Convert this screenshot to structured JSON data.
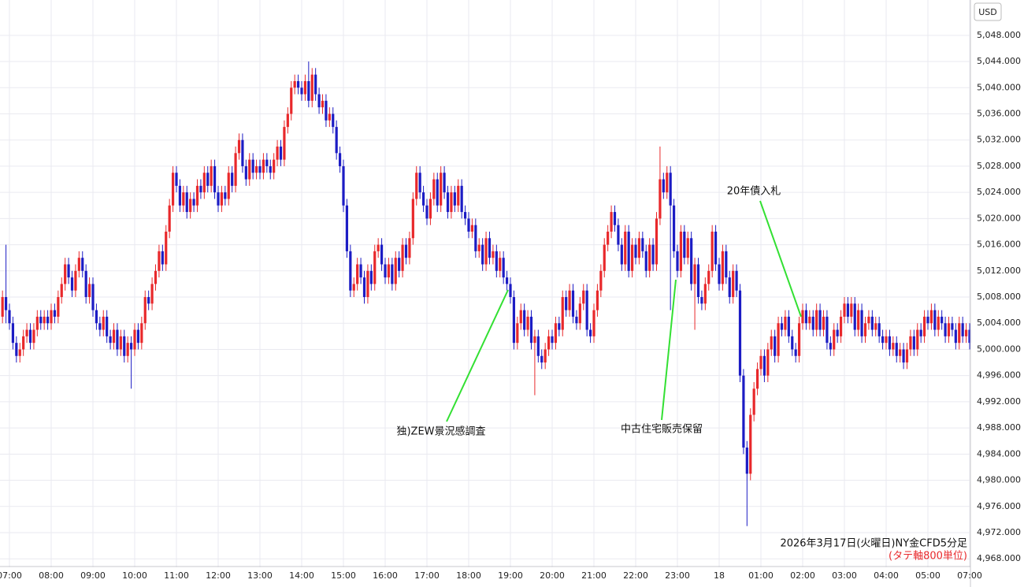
{
  "chart_data": {
    "type": "candlestick",
    "title": "2026年3月17日(火曜日)NY金CFD5分足",
    "subtitle": "(タテ軸800単位)",
    "y_axis_label": "USD",
    "up_color": "#e8282b",
    "down_color": "#1c1cc4",
    "annotation_color": "#33e033",
    "grid": true,
    "annotations": [
      {
        "text": "独)ZEW景況感調査"
      },
      {
        "text": "中古住宅販売保留"
      },
      {
        "text": "20年債入札"
      }
    ],
    "ylim": [
      4966.7,
      5053.4
    ],
    "yticks": [
      {
        "value": 4968,
        "label": "4,968.000"
      },
      {
        "value": 4972,
        "label": "4,972.000"
      },
      {
        "value": 4976,
        "label": "4,976.000"
      },
      {
        "value": 4980,
        "label": "4,980.000"
      },
      {
        "value": 4984,
        "label": "4,984.000"
      },
      {
        "value": 4988,
        "label": "4,988.000"
      },
      {
        "value": 4992,
        "label": "4,992.000"
      },
      {
        "value": 4996,
        "label": "4,996.000"
      },
      {
        "value": 5000,
        "label": "5,000.000"
      },
      {
        "value": 5004,
        "label": "5,004.000"
      },
      {
        "value": 5008,
        "label": "5,008.000"
      },
      {
        "value": 5012,
        "label": "5,012.000"
      },
      {
        "value": 5016,
        "label": "5,016.000"
      },
      {
        "value": 5020,
        "label": "5,020.000"
      },
      {
        "value": 5024,
        "label": "5,024.000"
      },
      {
        "value": 5028,
        "label": "5,028.000"
      },
      {
        "value": 5032,
        "label": "5,032.000"
      },
      {
        "value": 5036,
        "label": "5,036.000"
      },
      {
        "value": 5040,
        "label": "5,040.000"
      },
      {
        "value": 5044,
        "label": "5,044.000"
      },
      {
        "value": 5048,
        "label": "5,048.000"
      }
    ],
    "categories": [
      null,
      null,
      "07:00",
      null,
      null,
      null,
      null,
      null,
      null,
      null,
      null,
      null,
      null,
      null,
      "08:00",
      null,
      null,
      null,
      null,
      null,
      null,
      null,
      null,
      null,
      null,
      null,
      "09:00",
      null,
      null,
      null,
      null,
      null,
      null,
      null,
      null,
      null,
      null,
      null,
      "10:00",
      null,
      null,
      null,
      null,
      null,
      null,
      null,
      null,
      null,
      null,
      null,
      "11:00",
      null,
      null,
      null,
      null,
      null,
      null,
      null,
      null,
      null,
      null,
      null,
      "12:00",
      null,
      null,
      null,
      null,
      null,
      null,
      null,
      null,
      null,
      null,
      null,
      "13:00",
      null,
      null,
      null,
      null,
      null,
      null,
      null,
      null,
      null,
      null,
      null,
      "14:00",
      null,
      null,
      null,
      null,
      null,
      null,
      null,
      null,
      null,
      null,
      null,
      "15:00",
      null,
      null,
      null,
      null,
      null,
      null,
      null,
      null,
      null,
      null,
      null,
      "16:00",
      null,
      null,
      null,
      null,
      null,
      null,
      null,
      null,
      null,
      null,
      null,
      "17:00",
      null,
      null,
      null,
      null,
      null,
      null,
      null,
      null,
      null,
      null,
      null,
      "18:00",
      null,
      null,
      null,
      null,
      null,
      null,
      null,
      null,
      null,
      null,
      null,
      "19:00",
      null,
      null,
      null,
      null,
      null,
      null,
      null,
      null,
      null,
      null,
      null,
      "20:00",
      null,
      null,
      null,
      null,
      null,
      null,
      null,
      null,
      null,
      null,
      null,
      "21:00",
      null,
      null,
      null,
      null,
      null,
      null,
      null,
      null,
      null,
      null,
      null,
      "22:00",
      null,
      null,
      null,
      null,
      null,
      null,
      null,
      null,
      null,
      null,
      null,
      "23:00",
      null,
      null,
      null,
      null,
      null,
      null,
      null,
      null,
      null,
      null,
      null,
      "18",
      null,
      null,
      null,
      null,
      null,
      null,
      null,
      null,
      null,
      null,
      null,
      "01:00",
      null,
      null,
      null,
      null,
      null,
      null,
      null,
      null,
      null,
      null,
      null,
      "02:00",
      null,
      null,
      null,
      null,
      null,
      null,
      null,
      null,
      null,
      null,
      null,
      "03:00",
      null,
      null,
      null,
      null,
      null,
      null,
      null,
      null,
      null,
      null,
      null,
      "04:00",
      null,
      null,
      null,
      null,
      null,
      null,
      null,
      null,
      null,
      null,
      null,
      "05:00",
      null,
      null,
      null,
      null,
      null,
      null,
      null,
      null,
      null,
      null,
      null,
      "07:00"
    ],
    "open": [
      5005,
      5008,
      5006,
      5004,
      5001,
      4999,
      5000,
      5002,
      5003,
      5001,
      5003,
      5005,
      5004,
      5005,
      5004,
      5006,
      5005,
      5008,
      5010,
      5013,
      5011,
      5009,
      5012,
      5014,
      5012,
      5008,
      5010,
      5006,
      5004,
      5003,
      5005,
      5002,
      5001,
      5003,
      5000,
      5002,
      4999,
      5001,
      5000,
      5003,
      5001,
      5004,
      5008,
      5007,
      5010,
      5012,
      5015,
      5013,
      5018,
      5022,
      5027,
      5025,
      5022,
      5024,
      5021,
      5023,
      5022,
      5025,
      5024,
      5027,
      5025,
      5028,
      5024,
      5022,
      5024,
      5023,
      5027,
      5025,
      5030,
      5032,
      5028,
      5026,
      5029,
      5027,
      5028,
      5027,
      5029,
      5028,
      5027,
      5029,
      5031,
      5029,
      5034,
      5036,
      5040,
      5041,
      5040,
      5039,
      5041,
      5038,
      5042,
      5039,
      5037,
      5038,
      5035,
      5036,
      5034,
      5030,
      5028,
      5022,
      5015,
      5009,
      5010,
      5013,
      5011,
      5008,
      5012,
      5010,
      5015,
      5016,
      5013,
      5011,
      5013,
      5010,
      5014,
      5012,
      5016,
      5014,
      5017,
      5023,
      5027,
      5024,
      5022,
      5020,
      5023,
      5026,
      5022,
      5027,
      5024,
      5021,
      5024,
      5022,
      5025,
      5021,
      5020,
      5018,
      5019,
      5015,
      5016,
      5013,
      5017,
      5014,
      5015,
      5012,
      5014,
      5011,
      5010,
      5008,
      5001,
      5004,
      5006,
      5003,
      5005,
      5001,
      5002,
      4999,
      4998,
      5000,
      5002,
      5001,
      5004,
      5003,
      5008,
      5006,
      5009,
      5005,
      5004,
      5007,
      5009,
      5003,
      5002,
      5006,
      5009,
      5012,
      5016,
      5018,
      5021,
      5019,
      5016,
      5013,
      5018,
      5012,
      5016,
      5014,
      5017,
      5015,
      5012,
      5016,
      5013,
      5020,
      5026,
      5024,
      5027,
      5022,
      5015,
      5012,
      5018,
      5014,
      5017,
      5010,
      5013,
      5008,
      5007,
      5010,
      5012,
      5018,
      5013,
      5010,
      5015,
      5011,
      5008,
      5012,
      5009,
      4996,
      4985,
      4981,
      4990,
      4994,
      4997,
      4999,
      4996,
      5000,
      5002,
      4999,
      5004,
      5003,
      5005,
      5002,
      5000,
      4999,
      5004,
      5006,
      5004,
      5005,
      5003,
      5006,
      5003,
      5005,
      5001,
      5000,
      5003,
      5002,
      5005,
      5007,
      5005,
      5007,
      5003,
      5006,
      5002,
      5004,
      5005,
      5003,
      5004,
      5002,
      5001,
      5002,
      5000,
      5001,
      4999,
      5000,
      4998,
      5000,
      5002,
      5000,
      5003,
      5002,
      5005,
      5004,
      5006,
      5003,
      5005,
      5004,
      5002,
      5004,
      5003,
      5001,
      5004,
      5002,
      5003
    ],
    "high": [
      5009,
      5016,
      5007,
      5005,
      5002,
      5001,
      5003,
      5004,
      5004,
      5004,
      5006,
      5006,
      5006,
      5006,
      5007,
      5007,
      5009,
      5011,
      5014,
      5014,
      5012,
      5013,
      5015,
      5015,
      5013,
      5011,
      5011,
      5007,
      5005,
      5006,
      5006,
      5003,
      5004,
      5004,
      5003,
      5003,
      5002,
      5002,
      5004,
      5004,
      5005,
      5009,
      5009,
      5011,
      5013,
      5016,
      5016,
      5019,
      5023,
      5028,
      5028,
      5026,
      5025,
      5025,
      5024,
      5024,
      5026,
      5026,
      5028,
      5028,
      5029,
      5029,
      5025,
      5025,
      5025,
      5028,
      5028,
      5031,
      5033,
      5033,
      5029,
      5030,
      5030,
      5029,
      5029,
      5030,
      5030,
      5029,
      5030,
      5032,
      5032,
      5035,
      5037,
      5041,
      5042,
      5042,
      5041,
      5042,
      5044,
      5043,
      5043,
      5040,
      5039,
      5039,
      5037,
      5037,
      5035,
      5031,
      5029,
      5023,
      5016,
      5011,
      5014,
      5014,
      5012,
      5013,
      5013,
      5016,
      5017,
      5017,
      5014,
      5014,
      5014,
      5015,
      5015,
      5017,
      5017,
      5018,
      5024,
      5028,
      5028,
      5025,
      5023,
      5024,
      5027,
      5027,
      5028,
      5028,
      5025,
      5025,
      5025,
      5026,
      5026,
      5022,
      5021,
      5020,
      5020,
      5017,
      5017,
      5018,
      5018,
      5016,
      5016,
      5015,
      5015,
      5012,
      5011,
      5009,
      5005,
      5007,
      5007,
      5006,
      5006,
      5003,
      5003,
      5000,
      5001,
      5003,
      5003,
      5005,
      5005,
      5009,
      5009,
      5010,
      5010,
      5006,
      5008,
      5010,
      5010,
      5004,
      5007,
      5010,
      5013,
      5017,
      5019,
      5022,
      5022,
      5020,
      5017,
      5019,
      5019,
      5017,
      5017,
      5018,
      5018,
      5016,
      5017,
      5017,
      5021,
      5031,
      5027,
      5028,
      5028,
      5023,
      5016,
      5019,
      5019,
      5018,
      5018,
      5014,
      5014,
      5009,
      5011,
      5013,
      5019,
      5019,
      5014,
      5016,
      5016,
      5012,
      5013,
      5013,
      5010,
      4997,
      4986,
      4991,
      4995,
      4998,
      5000,
      5000,
      5001,
      5003,
      5003,
      5005,
      5005,
      5006,
      5006,
      5003,
      5001,
      5005,
      5007,
      5007,
      5006,
      5006,
      5007,
      5007,
      5006,
      5006,
      5002,
      5004,
      5004,
      5006,
      5008,
      5008,
      5008,
      5008,
      5007,
      5007,
      5005,
      5006,
      5006,
      5005,
      5005,
      5003,
      5003,
      5003,
      5002,
      5002,
      5001,
      5001,
      5001,
      5003,
      5003,
      5004,
      5004,
      5006,
      5006,
      5007,
      5007,
      5006,
      5006,
      5005,
      5005,
      5005,
      5004,
      5005,
      5005,
      5004,
      5004
    ],
    "low": [
      5004,
      5004,
      5003,
      5000,
      4998,
      4998,
      4999,
      5001,
      5000,
      5000,
      5002,
      5003,
      5003,
      5003,
      5003,
      5004,
      5004,
      5007,
      5009,
      5010,
      5008,
      5008,
      5011,
      5011,
      5007,
      5007,
      5005,
      5003,
      5002,
      5002,
      5001,
      5000,
      5000,
      4999,
      4999,
      4998,
      4998,
      4994,
      4999,
      5000,
      5000,
      5003,
      5006,
      5006,
      5009,
      5011,
      5012,
      5012,
      5017,
      5021,
      5024,
      5021,
      5021,
      5020,
      5020,
      5021,
      5021,
      5023,
      5023,
      5024,
      5024,
      5023,
      5021,
      5021,
      5022,
      5022,
      5024,
      5024,
      5029,
      5027,
      5025,
      5025,
      5026,
      5026,
      5026,
      5026,
      5027,
      5026,
      5026,
      5028,
      5028,
      5028,
      5033,
      5035,
      5039,
      5039,
      5038,
      5038,
      5037,
      5037,
      5038,
      5036,
      5036,
      5034,
      5034,
      5033,
      5029,
      5027,
      5021,
      5014,
      5008,
      5008,
      5009,
      5010,
      5007,
      5007,
      5009,
      5009,
      5014,
      5012,
      5010,
      5010,
      5009,
      5009,
      5011,
      5011,
      5013,
      5013,
      5016,
      5022,
      5023,
      5021,
      5019,
      5019,
      5022,
      5021,
      5021,
      5023,
      5020,
      5020,
      5021,
      5021,
      5020,
      5019,
      5017,
      5017,
      5014,
      5014,
      5012,
      5012,
      5013,
      5013,
      5011,
      5011,
      5010,
      5009,
      5007,
      5000,
      5000,
      5003,
      5002,
      5002,
      5000,
      4993,
      4998,
      4997,
      4997,
      4999,
      5000,
      5000,
      5002,
      5002,
      5005,
      5005,
      5004,
      5003,
      5003,
      5006,
      5002,
      5001,
      5001,
      5005,
      5008,
      5011,
      5015,
      5017,
      5018,
      5015,
      5012,
      5012,
      5011,
      5011,
      5013,
      5013,
      5014,
      5011,
      5011,
      5012,
      5012,
      5019,
      5023,
      5023,
      5006,
      5014,
      5011,
      5011,
      5013,
      5013,
      5009,
      5003,
      5007,
      5006,
      5006,
      5009,
      5011,
      5012,
      5009,
      5009,
      5010,
      5007,
      5007,
      5008,
      4995,
      4984,
      4973,
      4980,
      4989,
      4993,
      4996,
      4995,
      4995,
      4999,
      4998,
      4998,
      5002,
      5002,
      5001,
      4999,
      4998,
      4998,
      5003,
      5003,
      5003,
      5002,
      5002,
      5002,
      5002,
      5000,
      4999,
      4999,
      5001,
      5001,
      5004,
      5004,
      5004,
      5002,
      5002,
      5001,
      5001,
      5003,
      5002,
      5002,
      5001,
      5000,
      5000,
      4999,
      4999,
      4998,
      4998,
      4997,
      4997,
      4999,
      4999,
      4999,
      5001,
      5001,
      5003,
      5003,
      5002,
      5002,
      5003,
      5001,
      5001,
      5002,
      5000,
      5000,
      5001,
      5001,
      5000
    ],
    "close": [
      5008,
      5006,
      5004,
      5001,
      4999,
      5000,
      5002,
      5003,
      5001,
      5003,
      5005,
      5004,
      5005,
      5004,
      5006,
      5005,
      5008,
      5010,
      5013,
      5011,
      5009,
      5012,
      5014,
      5012,
      5008,
      5010,
      5006,
      5004,
      5003,
      5005,
      5002,
      5001,
      5003,
      5000,
      5002,
      4999,
      5001,
      5000,
      5003,
      5001,
      5004,
      5008,
      5007,
      5010,
      5012,
      5015,
      5013,
      5018,
      5022,
      5027,
      5025,
      5022,
      5024,
      5021,
      5023,
      5022,
      5025,
      5024,
      5027,
      5025,
      5028,
      5024,
      5022,
      5024,
      5023,
      5027,
      5025,
      5030,
      5032,
      5028,
      5026,
      5029,
      5027,
      5028,
      5027,
      5029,
      5028,
      5027,
      5029,
      5031,
      5029,
      5034,
      5036,
      5040,
      5041,
      5040,
      5039,
      5041,
      5038,
      5042,
      5039,
      5037,
      5038,
      5035,
      5036,
      5034,
      5030,
      5028,
      5022,
      5015,
      5009,
      5010,
      5013,
      5011,
      5008,
      5012,
      5010,
      5015,
      5016,
      5013,
      5011,
      5013,
      5010,
      5014,
      5012,
      5016,
      5014,
      5017,
      5023,
      5027,
      5024,
      5022,
      5020,
      5023,
      5026,
      5022,
      5027,
      5024,
      5021,
      5024,
      5022,
      5025,
      5021,
      5020,
      5018,
      5019,
      5015,
      5016,
      5013,
      5017,
      5014,
      5015,
      5012,
      5014,
      5011,
      5010,
      5008,
      5001,
      5004,
      5006,
      5003,
      5005,
      5001,
      5002,
      4999,
      4998,
      5000,
      5002,
      5001,
      5004,
      5003,
      5008,
      5006,
      5009,
      5005,
      5004,
      5007,
      5009,
      5003,
      5002,
      5006,
      5009,
      5012,
      5016,
      5018,
      5021,
      5019,
      5016,
      5013,
      5018,
      5012,
      5016,
      5014,
      5017,
      5015,
      5012,
      5016,
      5013,
      5020,
      5026,
      5024,
      5027,
      5022,
      5015,
      5012,
      5018,
      5014,
      5017,
      5010,
      5013,
      5008,
      5007,
      5010,
      5012,
      5018,
      5013,
      5010,
      5015,
      5011,
      5008,
      5012,
      5009,
      4996,
      4985,
      4981,
      4990,
      4994,
      4997,
      4999,
      4996,
      5000,
      5002,
      4999,
      5004,
      5003,
      5005,
      5002,
      5000,
      4999,
      5004,
      5006,
      5004,
      5005,
      5003,
      5006,
      5003,
      5005,
      5001,
      5000,
      5003,
      5002,
      5005,
      5007,
      5005,
      5007,
      5003,
      5006,
      5002,
      5004,
      5005,
      5003,
      5004,
      5002,
      5001,
      5002,
      5000,
      5001,
      4999,
      5000,
      4998,
      5000,
      5002,
      5000,
      5003,
      5002,
      5005,
      5004,
      5006,
      5003,
      5005,
      5004,
      5002,
      5004,
      5003,
      5001,
      5004,
      5002,
      5003,
      5001
    ]
  }
}
